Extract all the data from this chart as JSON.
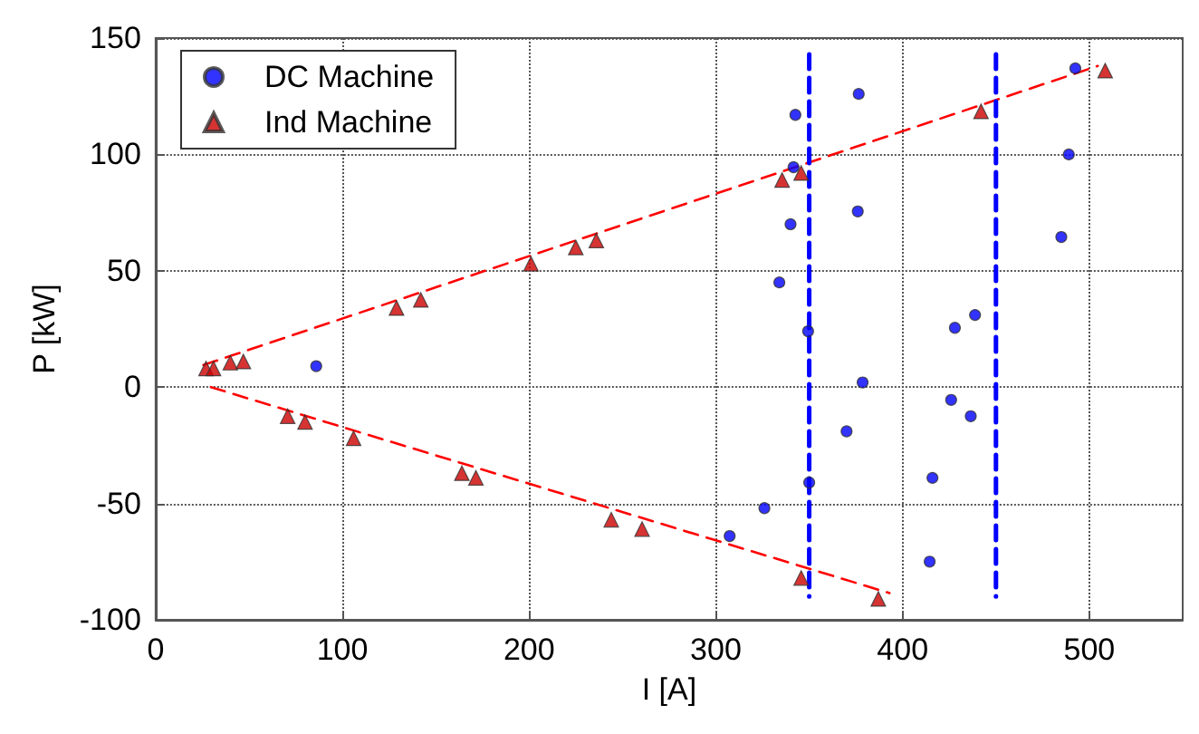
{
  "chart_data": {
    "type": "scatter",
    "xlabel": "I [A]",
    "ylabel": "P [kW]",
    "xlim": [
      0,
      550
    ],
    "ylim": [
      -100,
      150
    ],
    "xticks": [
      0,
      100,
      200,
      300,
      400,
      500
    ],
    "yticks": [
      -100,
      -50,
      0,
      50,
      100,
      150
    ],
    "grid": true,
    "legend": "top left",
    "series": [
      {
        "name": "DC Machine",
        "marker": "circle",
        "color": "#0000ff",
        "x": [
          86,
          342.6,
          376.5,
          341.6,
          340,
          376,
          334,
          349.4,
          378.6,
          428,
          438.8,
          489,
          492.5,
          485,
          426,
          436.5,
          370,
          350,
          326,
          307.4,
          416,
          414.5
        ],
        "values": [
          9,
          117,
          126,
          94.5,
          70,
          75.5,
          45,
          24,
          2,
          25.5,
          31,
          100,
          137,
          64.5,
          -5.5,
          -12.5,
          -19,
          -41,
          -52,
          -64,
          -39,
          -75
        ]
      },
      {
        "name": "Ind Machine",
        "marker": "triangle",
        "color": "#cc0000",
        "x": [
          27,
          31,
          40,
          47,
          129,
          142,
          201,
          225,
          236,
          335.5,
          345.7,
          442,
          508.5,
          70.7,
          80,
          106,
          164,
          171.5,
          244,
          260.5,
          345.7,
          387
        ],
        "values": [
          8,
          8,
          10.5,
          11,
          34,
          37.5,
          53,
          60,
          63,
          89,
          92,
          118.5,
          136,
          -12.5,
          -15,
          -22,
          -37,
          -39,
          -57,
          -61,
          -82,
          -91
        ]
      },
      {
        "type": "line",
        "marker": "none",
        "line_style": "dashed",
        "color": "#ff0000",
        "x": [
          25.6,
          504.5
        ],
        "values": [
          9.5,
          138
        ]
      },
      {
        "type": "line",
        "marker": "none",
        "line_style": "dashed",
        "color": "#ff0000",
        "x": [
          29.6,
          393
        ],
        "values": [
          0,
          -88.5
        ]
      },
      {
        "type": "line",
        "marker": "none",
        "line_style": "dashed",
        "color": "#0000ff",
        "x": [
          350,
          350
        ],
        "values": [
          143,
          -90
        ]
      },
      {
        "type": "line",
        "marker": "none",
        "line_style": "dashed",
        "color": "#0000ff",
        "x": [
          450,
          450
        ],
        "values": [
          143,
          -90
        ]
      }
    ]
  }
}
